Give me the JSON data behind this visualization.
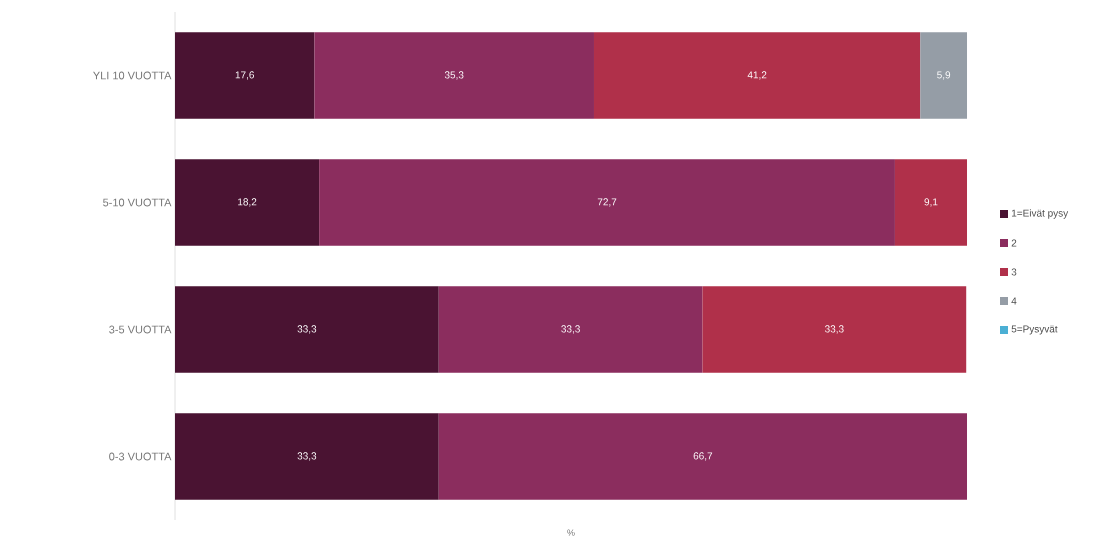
{
  "chart_data": {
    "type": "bar",
    "orientation": "horizontal",
    "stacked": true,
    "xlabel": "%",
    "categories": [
      "YLI 10 VUOTTA",
      "5-10 VUOTTA",
      "3-5 VUOTTA",
      "0-3 VUOTTA"
    ],
    "xlim": [
      0,
      100
    ],
    "tick_labels": "y",
    "legend": "right",
    "series": [
      {
        "name": "1=Eivät pysy",
        "color": "#4a1332",
        "values": [
          17.6,
          18.2,
          33.3,
          33.3
        ],
        "value_labels": [
          "17,6",
          "18,2",
          "33,3",
          "33,3"
        ]
      },
      {
        "name": "2",
        "color": "#8b2d5e",
        "values": [
          35.3,
          72.7,
          33.3,
          66.7
        ],
        "value_labels": [
          "35,3",
          "72,7",
          "33,3",
          "66,7"
        ]
      },
      {
        "name": "3",
        "color": "#b0304a",
        "values": [
          41.2,
          9.1,
          33.3,
          null
        ],
        "value_labels": [
          "41,2",
          "9,1",
          "33,3",
          null
        ]
      },
      {
        "name": "4",
        "color": "#959da6",
        "values": [
          5.9,
          null,
          null,
          null
        ],
        "value_labels": [
          "5,9",
          null,
          null,
          null
        ]
      },
      {
        "name": "5=Pysyvät",
        "color": "#4bafd4",
        "values": [
          null,
          null,
          null,
          null
        ],
        "value_labels": [
          null,
          null,
          null,
          null
        ]
      }
    ]
  }
}
